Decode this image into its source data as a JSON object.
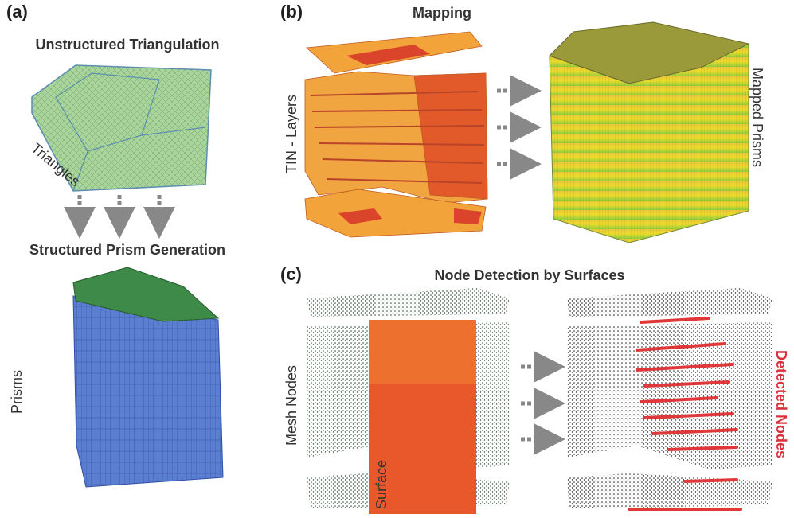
{
  "panels": [
    {
      "label": "(a)",
      "title": "Unstructured Triangulation",
      "surface_label": "Triangles",
      "subtitle": "Structured Prism Generation",
      "volume_label": "Prisms"
    },
    {
      "label": "(b)",
      "title": "Mapping",
      "input_label": "TIN - Layers",
      "output_label": "Mapped Prisms"
    },
    {
      "label": "(c)",
      "title": "Node Detection by Surfaces",
      "input_label": "Mesh Nodes",
      "surface_label": "Surface",
      "output_label": "Detected Nodes"
    }
  ]
}
